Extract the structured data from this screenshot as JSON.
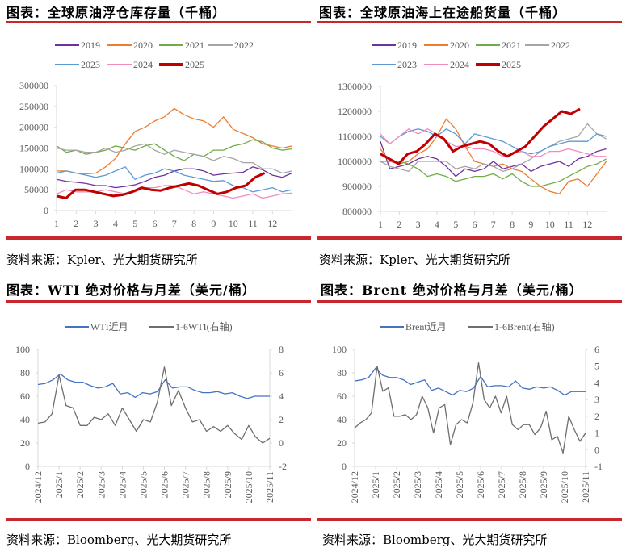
{
  "panels": {
    "tl": {
      "title": "图表：全球原油浮仓库存量（千桶）",
      "source": "资料来源：Kpler、光大期货研究所"
    },
    "tr": {
      "title": "图表：全球原油海上在途船货量（千桶）",
      "source": "资料来源：Kpler、光大期货研究所"
    },
    "bl": {
      "title": "图表：WTI 绝对价格与月差（美元/桶）",
      "source": "资料来源：Bloomberg、光大期货研究所"
    },
    "br": {
      "title": "图表：Brent 绝对价格与月差（美元/桶）",
      "source": "资料来源：Bloomberg、光大期货研究所"
    }
  },
  "colors": {
    "accent": "#c8282d"
  },
  "chart_data": [
    {
      "type": "line",
      "title": "全球原油浮仓库存量（千桶）",
      "xlabel": "",
      "ylabel": "千桶",
      "xticks": [
        "1",
        "2",
        "3",
        "4",
        "5",
        "6",
        "7",
        "8",
        "9",
        "10",
        "11",
        "12"
      ],
      "xlim": [
        1,
        13
      ],
      "ylim": [
        0,
        300000
      ],
      "yticks": [
        0,
        50000,
        100000,
        150000,
        200000,
        250000,
        300000
      ],
      "legend": "top",
      "series": [
        {
          "name": "2019",
          "color": "#7030a0",
          "width": 1.3,
          "x_range": [
            1,
            13
          ],
          "values": [
            75,
            70,
            68,
            65,
            60,
            60,
            55,
            58,
            62,
            70,
            80,
            85,
            95,
            100,
            100,
            95,
            85,
            88,
            90,
            92,
            105,
            98,
            85,
            80,
            90
          ]
        },
        {
          "name": "2020",
          "color": "#ed7d31",
          "width": 1.3,
          "x_range": [
            1,
            13
          ],
          "values": [
            95,
            95,
            90,
            88,
            90,
            105,
            125,
            160,
            190,
            200,
            215,
            225,
            245,
            230,
            220,
            215,
            200,
            225,
            195,
            185,
            175,
            160,
            155,
            150,
            155
          ]
        },
        {
          "name": "2021",
          "color": "#70ad47",
          "width": 1.3,
          "x_range": [
            1,
            13
          ],
          "values": [
            155,
            140,
            145,
            135,
            140,
            145,
            155,
            150,
            145,
            155,
            160,
            145,
            130,
            120,
            135,
            130,
            145,
            145,
            155,
            160,
            170,
            165,
            150,
            145,
            148
          ]
        },
        {
          "name": "2022",
          "color": "#a5a5a5",
          "width": 1.3,
          "x_range": [
            1,
            13
          ],
          "values": [
            150,
            145,
            145,
            140,
            140,
            150,
            140,
            145,
            155,
            160,
            145,
            135,
            145,
            140,
            135,
            130,
            120,
            130,
            125,
            115,
            115,
            100,
            100,
            90,
            95
          ]
        },
        {
          "name": "2023",
          "color": "#5b9bd5",
          "width": 1.3,
          "x_range": [
            1,
            13
          ],
          "values": [
            90,
            95,
            90,
            85,
            80,
            85,
            95,
            105,
            75,
            85,
            90,
            100,
            95,
            85,
            80,
            75,
            70,
            72,
            60,
            55,
            45,
            50,
            55,
            45,
            50
          ]
        },
        {
          "name": "2024",
          "color": "#f08cc0",
          "width": 1.3,
          "x_range": [
            1,
            13
          ],
          "values": [
            40,
            50,
            45,
            45,
            45,
            50,
            45,
            40,
            45,
            55,
            55,
            60,
            60,
            50,
            40,
            45,
            40,
            35,
            30,
            35,
            40,
            30,
            35,
            40,
            42
          ]
        },
        {
          "name": "2025",
          "color": "#c00000",
          "width": 3,
          "x_range": [
            1,
            11.6
          ],
          "values": [
            35,
            30,
            50,
            50,
            45,
            40,
            35,
            38,
            45,
            55,
            50,
            48,
            55,
            60,
            65,
            60,
            50,
            40,
            45,
            55,
            60,
            80,
            90
          ]
        }
      ],
      "value_scale": 1000
    },
    {
      "type": "line",
      "title": "全球原油海上在途船货量（千桶）",
      "xlabel": "",
      "ylabel": "千桶",
      "xticks": [
        "1",
        "2",
        "3",
        "4",
        "5",
        "6",
        "7",
        "8",
        "9",
        "10",
        "11",
        "12"
      ],
      "xlim": [
        1,
        13
      ],
      "ylim": [
        800000,
        1300000
      ],
      "yticks": [
        800000,
        900000,
        1000000,
        1100000,
        1200000,
        1300000
      ],
      "legend": "top",
      "series": [
        {
          "name": "2019",
          "color": "#7030a0",
          "width": 1.3,
          "x_range": [
            1,
            13
          ],
          "values": [
            1080,
            970,
            980,
            990,
            1010,
            1020,
            1010,
            980,
            940,
            970,
            960,
            970,
            1000,
            970,
            980,
            990,
            960,
            980,
            990,
            1000,
            980,
            1010,
            1020,
            1040,
            1050
          ]
        },
        {
          "name": "2020",
          "color": "#ed7d31",
          "width": 1.3,
          "x_range": [
            1,
            13
          ],
          "values": [
            1050,
            1000,
            990,
            1000,
            1030,
            1050,
            1100,
            1170,
            1130,
            1060,
            1000,
            990,
            980,
            990,
            970,
            960,
            930,
            900,
            880,
            870,
            920,
            930,
            900,
            950,
            1000
          ]
        },
        {
          "name": "2021",
          "color": "#70ad47",
          "width": 1.3,
          "x_range": [
            1,
            13
          ],
          "values": [
            1000,
            1000,
            1000,
            990,
            970,
            940,
            950,
            940,
            920,
            930,
            940,
            940,
            950,
            930,
            950,
            920,
            900,
            900,
            910,
            920,
            940,
            960,
            980,
            990,
            1010
          ]
        },
        {
          "name": "2022",
          "color": "#a5a5a5",
          "width": 1.3,
          "x_range": [
            1,
            13
          ],
          "values": [
            1000,
            980,
            970,
            960,
            1000,
            1000,
            1000,
            1000,
            970,
            980,
            970,
            990,
            980,
            960,
            970,
            990,
            1010,
            1040,
            1060,
            1080,
            1090,
            1100,
            1150,
            1110,
            1090
          ]
        },
        {
          "name": "2023",
          "color": "#5b9bd5",
          "width": 1.3,
          "x_range": [
            1,
            13
          ],
          "values": [
            1100,
            1070,
            1100,
            1120,
            1130,
            1120,
            1100,
            1130,
            1110,
            1070,
            1110,
            1100,
            1090,
            1080,
            1060,
            1040,
            1030,
            1040,
            1060,
            1070,
            1080,
            1080,
            1080,
            1110,
            1100
          ]
        },
        {
          "name": "2024",
          "color": "#f08cc0",
          "width": 1.3,
          "x_range": [
            1,
            13
          ],
          "values": [
            1110,
            1070,
            1100,
            1130,
            1110,
            1130,
            1110,
            1080,
            1060,
            1060,
            1050,
            1050,
            1040,
            1020,
            1030,
            1040,
            1020,
            1020,
            1040,
            1040,
            1050,
            1040,
            1030,
            1020,
            1020
          ]
        },
        {
          "name": "2025",
          "color": "#c00000",
          "width": 3,
          "x_range": [
            1,
            11.6
          ],
          "values": [
            1030,
            1010,
            990,
            1030,
            1040,
            1070,
            1110,
            1090,
            1040,
            1060,
            1070,
            1080,
            1070,
            1040,
            1020,
            1040,
            1060,
            1100,
            1140,
            1170,
            1200,
            1190,
            1210
          ]
        }
      ],
      "value_scale": 1000
    },
    {
      "type": "line",
      "title": "WTI 绝对价格与月差（美元/桶）",
      "xticks": [
        "2024/12",
        "2025/1",
        "2025/2",
        "2025/3",
        "2025/4",
        "2025/5",
        "2025/6",
        "2025/7",
        "2025/8",
        "2025/9",
        "2025/10",
        "2025/11"
      ],
      "xlim": [
        0,
        11
      ],
      "ylim": [
        0,
        100
      ],
      "yticks": [
        0,
        20,
        40,
        60,
        80,
        100
      ],
      "y2lim": [
        -2,
        8
      ],
      "y2ticks": [
        -2,
        0,
        2,
        4,
        6,
        8
      ],
      "legend": "top",
      "series": [
        {
          "name": "WTI近月",
          "color": "#4472c4",
          "width": 1.3,
          "axis": "left",
          "x_range": [
            0,
            11
          ],
          "values": [
            70,
            71,
            74,
            79,
            74,
            72,
            72,
            69,
            67,
            68,
            71,
            62,
            63,
            59,
            63,
            62,
            64,
            74,
            67,
            68,
            68,
            65,
            63,
            63,
            64,
            62,
            63,
            60,
            58,
            60,
            60,
            60
          ]
        },
        {
          "name": "1-6WTI(右轴)",
          "color": "#6e6e6e",
          "width": 1.3,
          "axis": "right",
          "x_range": [
            0,
            11
          ],
          "values": [
            1.7,
            1.8,
            2.5,
            5.8,
            3.2,
            3.0,
            1.5,
            1.5,
            2.2,
            2.0,
            2.5,
            1.5,
            3.0,
            2.0,
            1.0,
            2.0,
            1.8,
            3.5,
            6.5,
            3.2,
            4.5,
            3.0,
            1.8,
            2.0,
            1.0,
            1.4,
            1.0,
            1.5,
            0.8,
            0.3,
            1.5,
            0.5,
            0.0,
            0.4
          ]
        }
      ]
    },
    {
      "type": "line",
      "title": "Brent 绝对价格与月差（美元/桶）",
      "xticks": [
        "2024/12",
        "2025/1",
        "2025/2",
        "2025/3",
        "2025/4",
        "2025/5",
        "2025/6",
        "2025/7",
        "2025/8",
        "2025/9",
        "2025/10",
        "2025/11"
      ],
      "xlim": [
        0,
        11
      ],
      "ylim": [
        0,
        100
      ],
      "yticks": [
        0,
        20,
        40,
        60,
        80,
        100
      ],
      "y2lim": [
        -1,
        6
      ],
      "y2ticks": [
        -1,
        0,
        1,
        2,
        3,
        4,
        5,
        6
      ],
      "legend": "top",
      "series": [
        {
          "name": "Brent近月",
          "color": "#4472c4",
          "width": 1.3,
          "axis": "left",
          "x_range": [
            0,
            11
          ],
          "values": [
            73,
            74,
            76,
            84,
            78,
            76,
            76,
            74,
            70,
            72,
            74,
            65,
            67,
            64,
            61,
            65,
            64,
            67,
            77,
            68,
            69,
            69,
            68,
            73,
            67,
            66,
            68,
            67,
            68,
            65,
            61,
            64,
            64,
            64
          ]
        },
        {
          "name": "1-6Brent(右轴)",
          "color": "#6e6e6e",
          "width": 1.3,
          "axis": "right",
          "x_range": [
            0,
            11
          ],
          "values": [
            1.3,
            1.6,
            1.8,
            2.2,
            5.0,
            3.5,
            3.7,
            2.0,
            2.0,
            2.1,
            1.8,
            2.1,
            3.2,
            2.5,
            1.0,
            2.5,
            2.7,
            0.3,
            1.5,
            1.8,
            1.6,
            2.8,
            5.2,
            3.0,
            2.5,
            3.2,
            2.2,
            3.2,
            1.5,
            1.2,
            1.5,
            1.5,
            0.9,
            1.3,
            2.3,
            0.6,
            0.8,
            -0.2,
            2.0,
            1.2,
            0.5,
            1.0
          ]
        }
      ]
    }
  ]
}
